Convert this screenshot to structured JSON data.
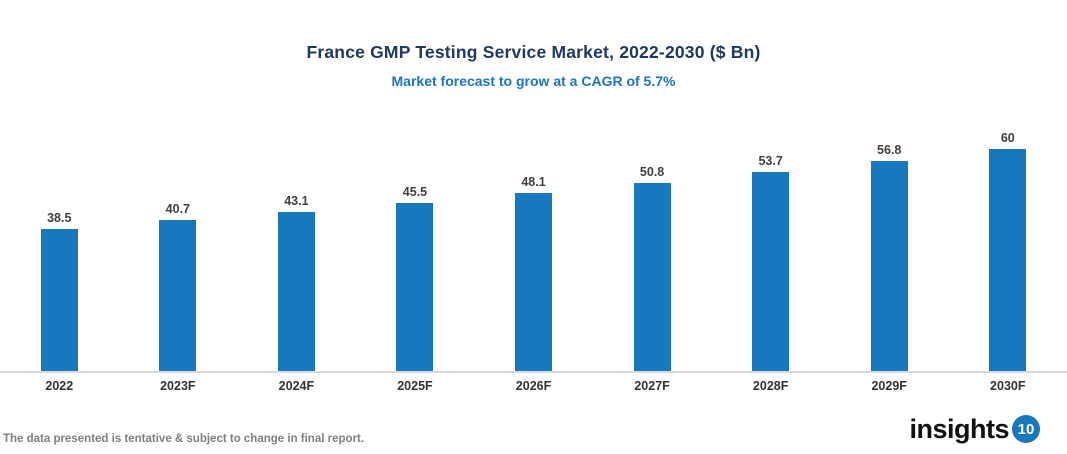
{
  "header": {
    "title": "France GMP Testing Service Market, 2022-2030 ($ Bn)",
    "subtitle": "Market forecast to grow at a CAGR of 5.7%"
  },
  "chart_data": {
    "type": "bar",
    "title": "France GMP Testing Service Market, 2022-2030 ($ Bn)",
    "subtitle": "Market forecast to grow at a CAGR of 5.7%",
    "categories": [
      "2022",
      "2023F",
      "2024F",
      "2025F",
      "2026F",
      "2027F",
      "2028F",
      "2029F",
      "2030F"
    ],
    "values": [
      38.5,
      40.7,
      43.1,
      45.5,
      48.1,
      50.8,
      53.7,
      56.8,
      60
    ],
    "data_labels": [
      "38.5",
      "40.7",
      "43.1",
      "45.5",
      "48.1",
      "50.8",
      "53.7",
      "56.8",
      "60"
    ],
    "xlabel": "",
    "ylabel": "",
    "ylim": [
      0,
      65
    ],
    "grid": false,
    "legend": false,
    "bar_color": "#1878be",
    "axis_line_color": "#d9d9d9"
  },
  "footer": {
    "disclaimer": "The data presented is tentative & subject to change in final report.",
    "logo_text": "insights",
    "logo_badge": "10"
  },
  "colors": {
    "title": "#1f3864",
    "subtitle": "#1b74c5",
    "bar": "#1878be",
    "value_label": "#404040",
    "axis_label": "#333333",
    "footer": "#7f7f7f",
    "logo_badge_bg": "#1878be"
  }
}
